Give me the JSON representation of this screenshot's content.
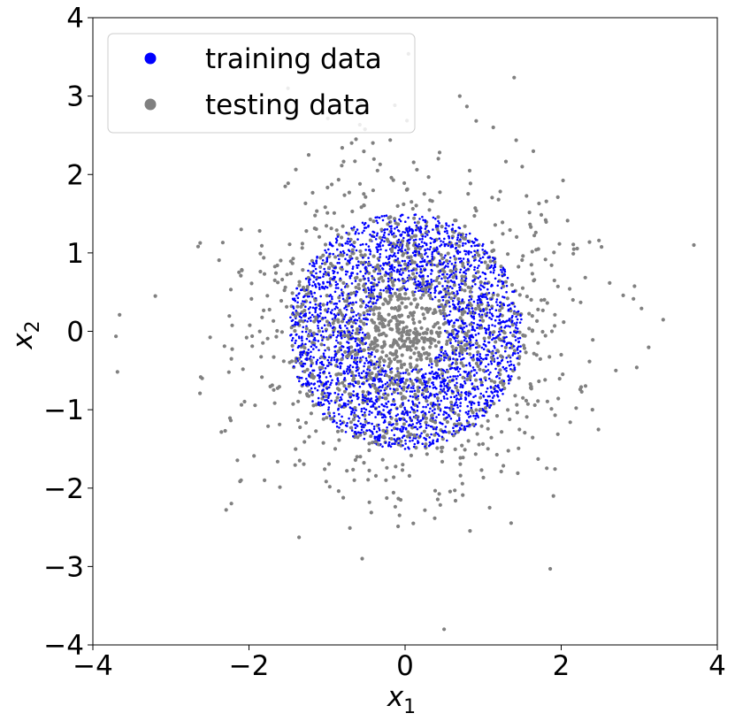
{
  "chart_data": {
    "type": "scatter",
    "xlabel": "x",
    "xlabel_sub": "1",
    "ylabel": "x",
    "ylabel_sub": "2",
    "xlim": [
      -4,
      4
    ],
    "ylim": [
      -4,
      4
    ],
    "xticks": [
      -4,
      -2,
      0,
      2,
      4
    ],
    "yticks": [
      -4,
      -3,
      -2,
      -1,
      0,
      1,
      2,
      3,
      4
    ],
    "xtick_labels": [
      "−4",
      "−2",
      "0",
      "2",
      "4"
    ],
    "ytick_labels": [
      "−4",
      "−3",
      "−2",
      "−1",
      "0",
      "1",
      "2",
      "3",
      "4"
    ],
    "grid": false,
    "legend_position": "top-left",
    "series": [
      {
        "name": "training data",
        "color": "#0000ff",
        "distribution": "annulus",
        "radius_range": [
          0.5,
          1.5
        ],
        "count": 2600,
        "points": [
          [
            0.9,
            0.6
          ],
          [
            -0.7,
            1.1
          ],
          [
            1.2,
            -0.4
          ],
          [
            -1.3,
            0.2
          ],
          [
            0.3,
            -1.2
          ],
          [
            -0.5,
            -1.0
          ],
          [
            0.6,
            1.3
          ],
          [
            -1.1,
            -0.7
          ],
          [
            1.4,
            0.1
          ],
          [
            0.0,
            -1.5
          ],
          [
            -0.2,
            1.45
          ],
          [
            1.0,
            -1.0
          ]
        ]
      },
      {
        "name": "testing data",
        "color": "#808080",
        "distribution": "disk and outer scatter",
        "count": 1700,
        "points": [
          [
            0.1,
            0.2
          ],
          [
            -0.3,
            -0.2
          ],
          [
            0.2,
            -0.3
          ],
          [
            -2.1,
            1.3
          ],
          [
            2.4,
            -1.0
          ],
          [
            -1.8,
            -1.9
          ],
          [
            1.5,
            2.1
          ],
          [
            0.5,
            -3.8
          ],
          [
            3.7,
            1.1
          ],
          [
            -3.2,
            0.45
          ],
          [
            -0.55,
            -2.9
          ],
          [
            0.7,
            3.0
          ],
          [
            -2.6,
            -0.6
          ],
          [
            2.7,
            -0.5
          ],
          [
            -1.5,
            3.1
          ],
          [
            1.9,
            -2.1
          ]
        ]
      }
    ]
  },
  "icons": {
    "training_marker": "circle-blue",
    "testing_marker": "circle-gray"
  }
}
